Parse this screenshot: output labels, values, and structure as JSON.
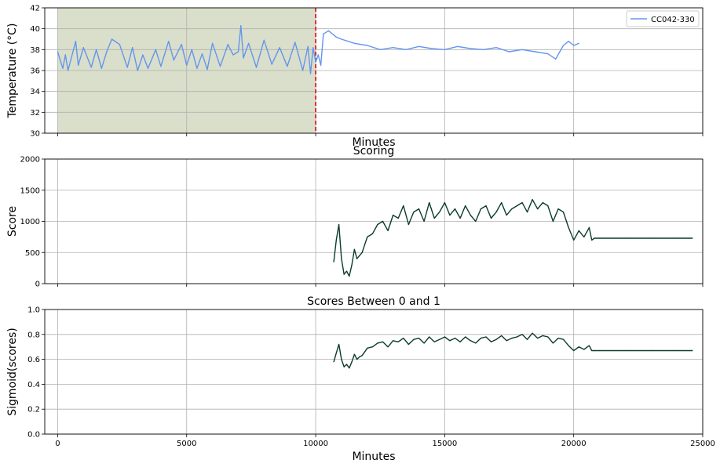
{
  "chart_data": [
    {
      "type": "line",
      "title": "",
      "xlabel": "Minutes",
      "ylabel": "Temperature (°C)",
      "xlim": [
        -500,
        25000
      ],
      "ylim": [
        30,
        42
      ],
      "yticks": [
        "30",
        "32",
        "34",
        "36",
        "38",
        "40",
        "42"
      ],
      "grid": true,
      "legend": {
        "placement": "top-right",
        "entries": [
          "CC042-330"
        ]
      },
      "shaded_region": {
        "x": [
          0,
          10000
        ],
        "color": "#d9dfca"
      },
      "vline": {
        "x": 10000,
        "color": "#e02020",
        "style": "dashed"
      },
      "series": [
        {
          "name": "CC042-330",
          "color": "#6495ed",
          "x": [
            0,
            200,
            300,
            400,
            700,
            800,
            1000,
            1300,
            1500,
            1700,
            1900,
            2100,
            2400,
            2700,
            2900,
            3100,
            3300,
            3500,
            3800,
            4000,
            4300,
            4500,
            4800,
            5000,
            5200,
            5400,
            5600,
            5800,
            6000,
            6300,
            6600,
            6800,
            7000,
            7100,
            7200,
            7400,
            7700,
            8000,
            8300,
            8600,
            8900,
            9200,
            9500,
            9700,
            9800,
            9900,
            10000,
            10100,
            10200,
            10300,
            10500,
            10800,
            11000,
            11500,
            12000,
            12500,
            13000,
            13500,
            14000,
            14500,
            15000,
            15500,
            16000,
            16500,
            17000,
            17500,
            18000,
            18500,
            19000,
            19300,
            19600,
            19800,
            20000,
            20200
          ],
          "y": [
            37.8,
            36.2,
            37.5,
            36.0,
            38.8,
            36.5,
            38.2,
            36.3,
            38.0,
            36.2,
            37.8,
            39.0,
            38.5,
            36.3,
            38.2,
            36.0,
            37.5,
            36.2,
            38.0,
            36.4,
            38.8,
            37.0,
            38.5,
            36.5,
            38.0,
            36.2,
            37.6,
            36.1,
            38.6,
            36.4,
            38.5,
            37.5,
            37.8,
            40.3,
            37.2,
            38.6,
            36.3,
            38.9,
            36.6,
            38.2,
            36.4,
            38.7,
            36.0,
            38.3,
            35.7,
            38.2,
            36.8,
            37.5,
            36.5,
            39.5,
            39.8,
            39.2,
            39.0,
            38.6,
            38.4,
            38.0,
            38.2,
            38.0,
            38.3,
            38.1,
            38.0,
            38.3,
            38.1,
            38.0,
            38.2,
            37.8,
            38.0,
            37.8,
            37.6,
            37.1,
            38.4,
            38.8,
            38.4,
            38.6
          ]
        }
      ]
    },
    {
      "type": "line",
      "title": "Scoring",
      "xlabel": "",
      "ylabel": "Score",
      "xlim": [
        -500,
        25000
      ],
      "ylim": [
        0,
        2000
      ],
      "yticks": [
        "0",
        "500",
        "1000",
        "1500",
        "2000"
      ],
      "grid": true,
      "series": [
        {
          "name": "",
          "color": "#0b3b2c",
          "x": [
            10700,
            10800,
            10900,
            11000,
            11100,
            11200,
            11300,
            11400,
            11500,
            11600,
            11700,
            11800,
            12000,
            12200,
            12400,
            12600,
            12800,
            13000,
            13200,
            13400,
            13600,
            13800,
            14000,
            14200,
            14400,
            14600,
            14800,
            15000,
            15200,
            15400,
            15600,
            15800,
            16000,
            16200,
            16400,
            16600,
            16800,
            17000,
            17200,
            17400,
            17600,
            17800,
            18000,
            18200,
            18400,
            18600,
            18800,
            19000,
            19200,
            19400,
            19600,
            19800,
            20000,
            20200,
            20400,
            20600,
            20700,
            20800,
            21000,
            22000,
            23000,
            24000,
            24600
          ],
          "y": [
            350,
            700,
            950,
            400,
            150,
            200,
            120,
            300,
            550,
            400,
            450,
            500,
            750,
            800,
            950,
            1000,
            850,
            1100,
            1050,
            1250,
            950,
            1150,
            1200,
            1000,
            1300,
            1050,
            1150,
            1300,
            1100,
            1200,
            1050,
            1250,
            1100,
            1000,
            1200,
            1250,
            1050,
            1150,
            1300,
            1100,
            1200,
            1250,
            1300,
            1150,
            1350,
            1200,
            1300,
            1250,
            1000,
            1200,
            1150,
            900,
            700,
            850,
            750,
            900,
            700,
            730,
            730,
            730,
            730,
            730,
            730
          ]
        }
      ]
    },
    {
      "type": "line",
      "title": "Scores Between 0 and 1",
      "xlabel": "Minutes",
      "ylabel": "Sigmoid(scores)",
      "xlim": [
        -500,
        25000
      ],
      "ylim": [
        0.0,
        1.0
      ],
      "yticks": [
        "0.0",
        "0.2",
        "0.4",
        "0.6",
        "0.8",
        "1.0"
      ],
      "xticks": [
        "0",
        "5000",
        "10000",
        "15000",
        "20000",
        "25000"
      ],
      "grid": true,
      "series": [
        {
          "name": "",
          "color": "#0b3b2c",
          "x": [
            10700,
            10800,
            10900,
            11000,
            11100,
            11200,
            11300,
            11400,
            11500,
            11600,
            11700,
            11800,
            12000,
            12200,
            12400,
            12600,
            12800,
            13000,
            13200,
            13400,
            13600,
            13800,
            14000,
            14200,
            14400,
            14600,
            14800,
            15000,
            15200,
            15400,
            15600,
            15800,
            16000,
            16200,
            16400,
            16600,
            16800,
            17000,
            17200,
            17400,
            17600,
            17800,
            18000,
            18200,
            18400,
            18600,
            18800,
            19000,
            19200,
            19400,
            19600,
            19800,
            20000,
            20200,
            20400,
            20600,
            20700,
            20800,
            21000,
            22000,
            23000,
            24000,
            24600
          ],
          "y": [
            0.58,
            0.65,
            0.72,
            0.6,
            0.54,
            0.56,
            0.53,
            0.58,
            0.64,
            0.6,
            0.62,
            0.63,
            0.69,
            0.7,
            0.73,
            0.74,
            0.7,
            0.75,
            0.74,
            0.77,
            0.72,
            0.76,
            0.77,
            0.73,
            0.78,
            0.74,
            0.76,
            0.78,
            0.75,
            0.77,
            0.74,
            0.78,
            0.75,
            0.73,
            0.77,
            0.78,
            0.74,
            0.76,
            0.79,
            0.75,
            0.77,
            0.78,
            0.8,
            0.76,
            0.81,
            0.77,
            0.79,
            0.78,
            0.73,
            0.77,
            0.76,
            0.71,
            0.67,
            0.7,
            0.68,
            0.71,
            0.67,
            0.67,
            0.67,
            0.67,
            0.67,
            0.67,
            0.67
          ]
        }
      ]
    }
  ]
}
